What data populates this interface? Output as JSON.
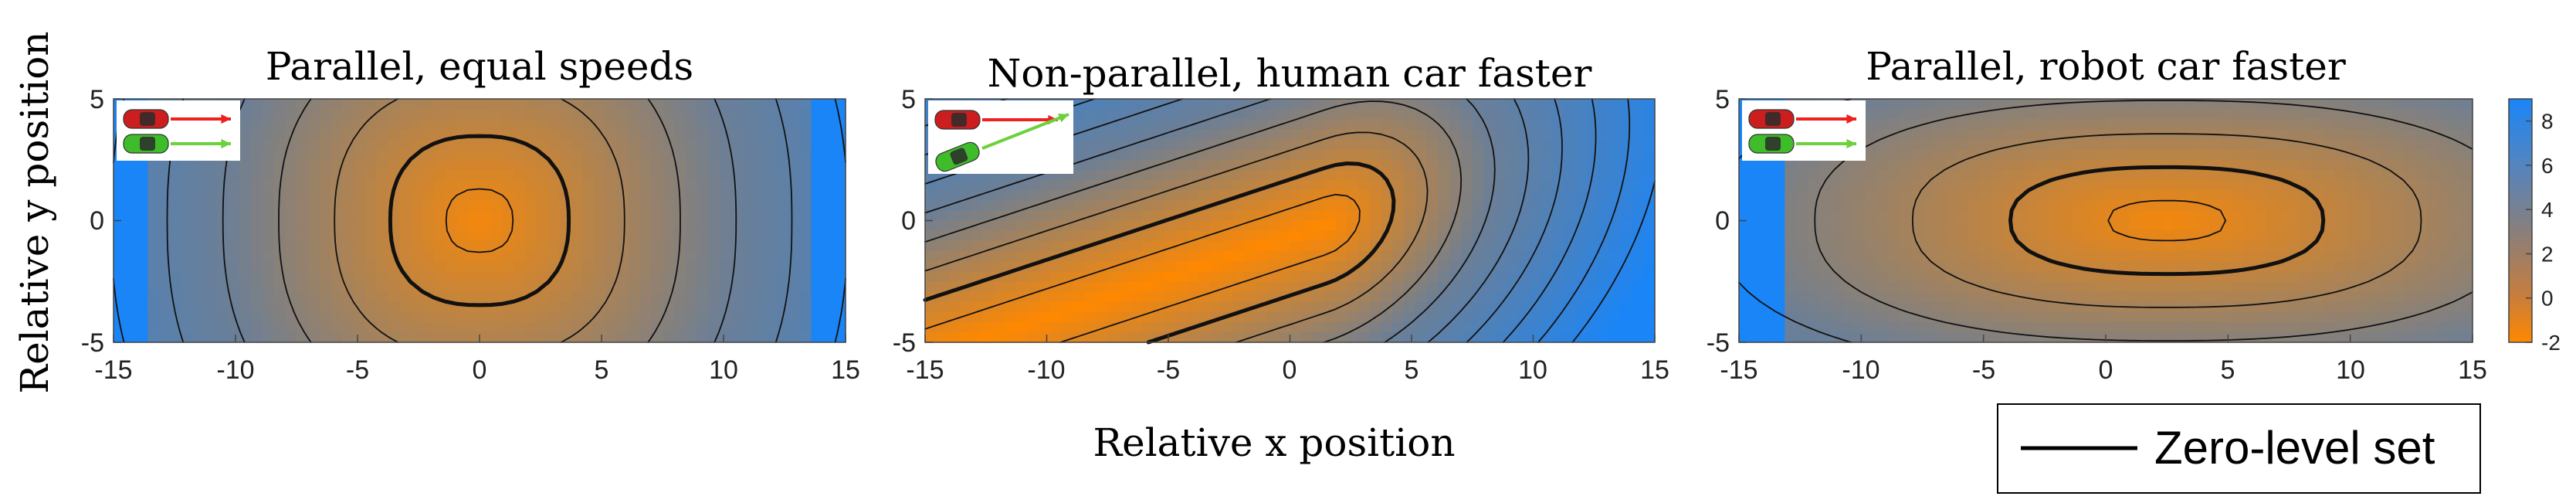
{
  "figure": {
    "shared_ylabel": "Relative y position",
    "shared_xlabel": "Relative x position",
    "legend_label": "Zero-level set"
  },
  "colors": {
    "high": "#1a85f7",
    "mid": "#6c7f96",
    "low": "#ff8800",
    "contour": "#111111",
    "robot_car": "#cc1e1e",
    "human_car": "#3ebc2a",
    "robot_arrow": "#ee2020",
    "human_arrow": "#6bd13c"
  },
  "colorbar": {
    "min": -2,
    "max": 9,
    "ticks": [
      "8",
      "6",
      "4",
      "2",
      "0",
      "-2"
    ],
    "tick_values": [
      8,
      6,
      4,
      2,
      0,
      -2
    ]
  },
  "chart_data": [
    {
      "type": "heatmap",
      "title": "Parallel, equal speeds",
      "x_ticks": [
        "-15",
        "-10",
        "-5",
        "0",
        "5",
        "10",
        "15"
      ],
      "x_tick_values": [
        -15,
        -10,
        -5,
        0,
        5,
        10,
        15
      ],
      "y_ticks": [
        "5",
        "0",
        "-5"
      ],
      "y_tick_values": [
        5,
        0,
        -5
      ],
      "xlim": [
        -15,
        15
      ],
      "ylim": [
        -5,
        5
      ],
      "center": [
        0,
        0
      ],
      "scale_x": 4.0,
      "scale_y": 3.8,
      "min_value": -1.6,
      "saturation_x": 13.5,
      "inset_arrows": "parallel",
      "contour_levels": [
        -1,
        0,
        1,
        2,
        3,
        4,
        5,
        6,
        7,
        8
      ],
      "zero_level_set": 0
    },
    {
      "type": "heatmap",
      "title": "Non-parallel, human car faster",
      "x_ticks": [
        "-15",
        "-10",
        "-5",
        "0",
        "5",
        "10",
        "15"
      ],
      "x_tick_values": [
        -15,
        -10,
        -5,
        0,
        5,
        10,
        15
      ],
      "y_ticks": [
        "5",
        "0",
        "-5"
      ],
      "y_tick_values": [
        5,
        0,
        -5
      ],
      "xlim": [
        -15,
        15
      ],
      "ylim": [
        -5,
        5
      ],
      "ridge_slope": 0.33,
      "ridge_half_width": 3.1,
      "ridge_end_x": 1.5,
      "min_value": -2,
      "inset_arrows": "diverging",
      "contour_levels": [
        -1,
        0,
        1,
        2,
        3,
        4,
        5,
        6,
        7,
        8
      ],
      "zero_level_set": 0
    },
    {
      "type": "heatmap",
      "title": "Parallel, robot car faster",
      "x_ticks": [
        "-15",
        "-10",
        "-5",
        "0",
        "5",
        "10",
        "15"
      ],
      "x_tick_values": [
        -15,
        -10,
        -5,
        0,
        5,
        10,
        15
      ],
      "y_ticks": [
        "5",
        "0",
        "-5"
      ],
      "y_tick_values": [
        5,
        0,
        -5
      ],
      "xlim": [
        -15,
        15
      ],
      "ylim": [
        -5,
        5
      ],
      "center": [
        2.5,
        0
      ],
      "scale_x": 7.0,
      "scale_y": 2.4,
      "min_value": -1.6,
      "saturation_x": -13,
      "inset_arrows": "parallel",
      "contour_levels": [
        -1,
        0,
        1,
        2,
        3,
        4,
        5,
        6,
        7,
        8
      ],
      "zero_level_set": 0
    }
  ]
}
